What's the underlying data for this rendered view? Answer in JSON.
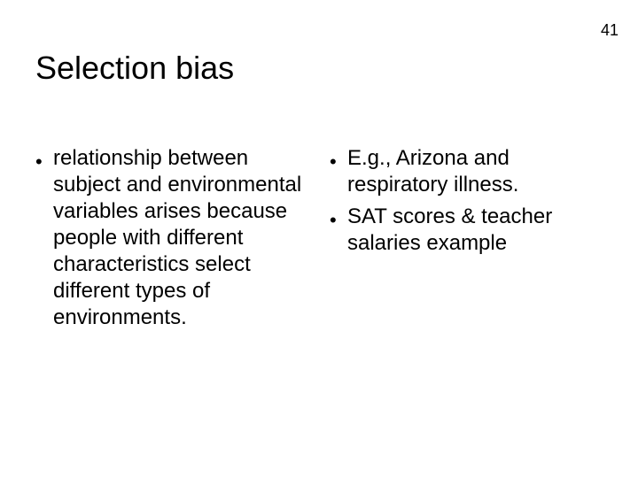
{
  "page_number": "41",
  "title": "Selection bias",
  "columns": {
    "left": {
      "items": [
        "relationship between subject and environmental variables arises because people with different characteristics select different types of environments."
      ]
    },
    "right": {
      "items": [
        "E.g., Arizona and respiratory illness.",
        "SAT scores & teacher salaries example"
      ]
    }
  },
  "style": {
    "background_color": "#ffffff",
    "text_color": "#000000",
    "title_fontsize": 36,
    "body_fontsize": 24,
    "pagenum_fontsize": 18,
    "font_family": "Arial"
  }
}
